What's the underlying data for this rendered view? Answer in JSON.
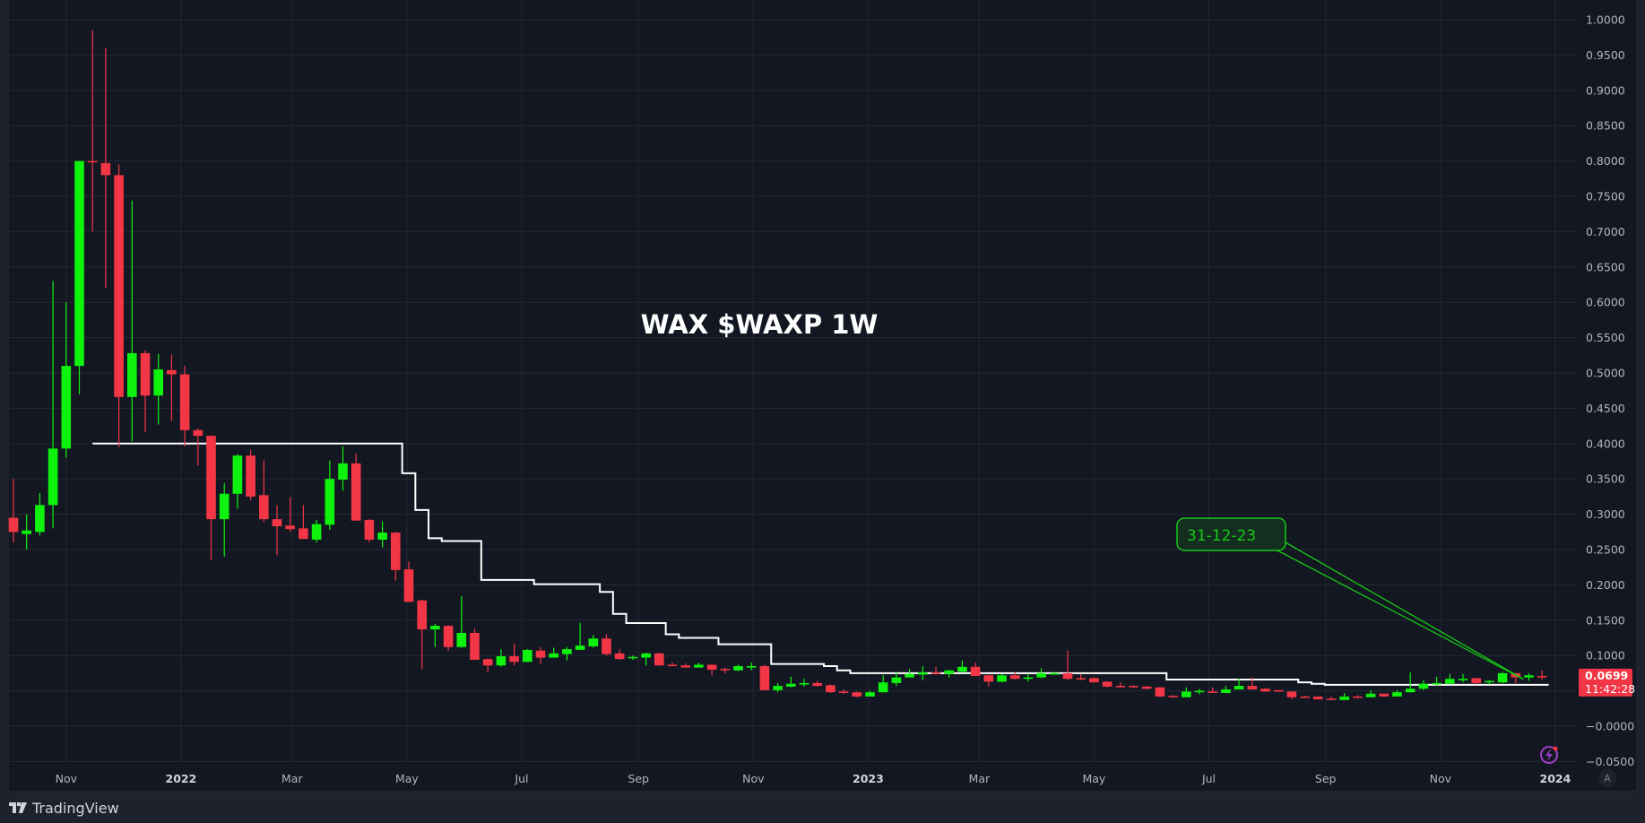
{
  "chart_data": {
    "type": "candlestick",
    "title": "WAX $WAXP 1W",
    "interval": "1W",
    "ylim": [
      -0.06,
      1.03
    ],
    "grid": true,
    "colors": {
      "up": "#0ef20e",
      "down": "#f23645",
      "background": "#131722",
      "grid": "#242833",
      "step_line": "#ffffff",
      "annotation": "#17c917",
      "axis_text": "#b2b5be"
    },
    "price_ticks": [
      {
        "value": 1.0,
        "label": "1.0000"
      },
      {
        "value": 0.95,
        "label": "0.9500"
      },
      {
        "value": 0.9,
        "label": "0.9000"
      },
      {
        "value": 0.85,
        "label": "0.8500"
      },
      {
        "value": 0.8,
        "label": "0.8000"
      },
      {
        "value": 0.75,
        "label": "0.7500"
      },
      {
        "value": 0.7,
        "label": "0.7000"
      },
      {
        "value": 0.65,
        "label": "0.6500"
      },
      {
        "value": 0.6,
        "label": "0.6000"
      },
      {
        "value": 0.55,
        "label": "0.5500"
      },
      {
        "value": 0.5,
        "label": "0.5000"
      },
      {
        "value": 0.45,
        "label": "0.4500"
      },
      {
        "value": 0.4,
        "label": "0.4000"
      },
      {
        "value": 0.35,
        "label": "0.3500"
      },
      {
        "value": 0.3,
        "label": "0.3000"
      },
      {
        "value": 0.25,
        "label": "0.2500"
      },
      {
        "value": 0.2,
        "label": "0.2000"
      },
      {
        "value": 0.15,
        "label": "0.1500"
      },
      {
        "value": 0.1,
        "label": "0.1000"
      },
      {
        "value": 0.05,
        "label": ""
      },
      {
        "value": 0.0,
        "label": "−0.0000"
      },
      {
        "value": -0.05,
        "label": "−0.0500"
      }
    ],
    "time_ticks": [
      {
        "date": "2021-11-01",
        "label": "Nov",
        "year": false
      },
      {
        "date": "2022-01-01",
        "label": "2022",
        "year": true
      },
      {
        "date": "2022-03-01",
        "label": "Mar",
        "year": false
      },
      {
        "date": "2022-05-01",
        "label": "May",
        "year": false
      },
      {
        "date": "2022-07-01",
        "label": "Jul",
        "year": false
      },
      {
        "date": "2022-09-01",
        "label": "Sep",
        "year": false
      },
      {
        "date": "2022-11-01",
        "label": "Nov",
        "year": false
      },
      {
        "date": "2023-01-01",
        "label": "2023",
        "year": true
      },
      {
        "date": "2023-03-01",
        "label": "Mar",
        "year": false
      },
      {
        "date": "2023-05-01",
        "label": "May",
        "year": false
      },
      {
        "date": "2023-07-01",
        "label": "Jul",
        "year": false
      },
      {
        "date": "2023-09-01",
        "label": "Sep",
        "year": false
      },
      {
        "date": "2023-11-01",
        "label": "Nov",
        "year": false
      },
      {
        "date": "2024-01-01",
        "label": "2024",
        "year": true
      }
    ],
    "candle_fields": [
      "date",
      "open",
      "high",
      "low",
      "close"
    ],
    "candles": [
      [
        "2021-10-04",
        0.295,
        0.35,
        0.26,
        0.275
      ],
      [
        "2021-10-11",
        0.272,
        0.3,
        0.25,
        0.277
      ],
      [
        "2021-10-18",
        0.275,
        0.33,
        0.27,
        0.313
      ],
      [
        "2021-10-25",
        0.313,
        0.63,
        0.28,
        0.393
      ],
      [
        "2021-11-01",
        0.393,
        0.6,
        0.38,
        0.51
      ],
      [
        "2021-11-08",
        0.51,
        0.8,
        0.47,
        0.8
      ],
      [
        "2021-11-15",
        0.8,
        0.985,
        0.7,
        0.799
      ],
      [
        "2021-11-22",
        0.797,
        0.96,
        0.62,
        0.78
      ],
      [
        "2021-11-29",
        0.78,
        0.795,
        0.395,
        0.466
      ],
      [
        "2021-12-06",
        0.466,
        0.744,
        0.403,
        0.528
      ],
      [
        "2021-12-13",
        0.528,
        0.532,
        0.416,
        0.468
      ],
      [
        "2021-12-20",
        0.468,
        0.527,
        0.427,
        0.505
      ],
      [
        "2021-12-27",
        0.504,
        0.526,
        0.432,
        0.498
      ],
      [
        "2022-01-03",
        0.498,
        0.51,
        0.396,
        0.419
      ],
      [
        "2022-01-10",
        0.419,
        0.422,
        0.369,
        0.411
      ],
      [
        "2022-01-17",
        0.411,
        0.412,
        0.235,
        0.293
      ],
      [
        "2022-01-24",
        0.293,
        0.344,
        0.24,
        0.329
      ],
      [
        "2022-01-31",
        0.329,
        0.385,
        0.308,
        0.383
      ],
      [
        "2022-02-07",
        0.383,
        0.391,
        0.32,
        0.325
      ],
      [
        "2022-02-14",
        0.327,
        0.376,
        0.289,
        0.293
      ],
      [
        "2022-02-21",
        0.293,
        0.313,
        0.242,
        0.283
      ],
      [
        "2022-02-28",
        0.284,
        0.324,
        0.275,
        0.279
      ],
      [
        "2022-03-07",
        0.28,
        0.313,
        0.265,
        0.265
      ],
      [
        "2022-03-14",
        0.264,
        0.292,
        0.26,
        0.286
      ],
      [
        "2022-03-21",
        0.285,
        0.376,
        0.278,
        0.35
      ],
      [
        "2022-03-28",
        0.349,
        0.396,
        0.333,
        0.372
      ],
      [
        "2022-04-04",
        0.372,
        0.386,
        0.291,
        0.291
      ],
      [
        "2022-04-11",
        0.292,
        0.293,
        0.26,
        0.264
      ],
      [
        "2022-04-18",
        0.264,
        0.29,
        0.253,
        0.274
      ],
      [
        "2022-04-25",
        0.274,
        0.275,
        0.206,
        0.221
      ],
      [
        "2022-05-02",
        0.222,
        0.233,
        0.176,
        0.176
      ],
      [
        "2022-05-09",
        0.178,
        0.179,
        0.081,
        0.137
      ],
      [
        "2022-05-16",
        0.137,
        0.145,
        0.112,
        0.142
      ],
      [
        "2022-05-23",
        0.142,
        0.143,
        0.107,
        0.112
      ],
      [
        "2022-05-30",
        0.112,
        0.184,
        0.111,
        0.132
      ],
      [
        "2022-06-06",
        0.132,
        0.138,
        0.094,
        0.094
      ],
      [
        "2022-06-13",
        0.095,
        0.096,
        0.076,
        0.086
      ],
      [
        "2022-06-20",
        0.086,
        0.109,
        0.084,
        0.099
      ],
      [
        "2022-06-27",
        0.099,
        0.117,
        0.086,
        0.091
      ],
      [
        "2022-07-04",
        0.091,
        0.109,
        0.091,
        0.108
      ],
      [
        "2022-07-11",
        0.107,
        0.112,
        0.088,
        0.097
      ],
      [
        "2022-07-18",
        0.097,
        0.111,
        0.097,
        0.103
      ],
      [
        "2022-07-25",
        0.102,
        0.112,
        0.093,
        0.109
      ],
      [
        "2022-08-01",
        0.108,
        0.146,
        0.108,
        0.114
      ],
      [
        "2022-08-08",
        0.113,
        0.129,
        0.111,
        0.124
      ],
      [
        "2022-08-15",
        0.124,
        0.13,
        0.1,
        0.102
      ],
      [
        "2022-08-22",
        0.103,
        0.109,
        0.094,
        0.095
      ],
      [
        "2022-08-29",
        0.097,
        0.1,
        0.094,
        0.098
      ],
      [
        "2022-09-05",
        0.097,
        0.104,
        0.086,
        0.103
      ],
      [
        "2022-09-12",
        0.103,
        0.104,
        0.086,
        0.086
      ],
      [
        "2022-09-19",
        0.087,
        0.09,
        0.085,
        0.086
      ],
      [
        "2022-09-26",
        0.086,
        0.089,
        0.083,
        0.083
      ],
      [
        "2022-10-03",
        0.083,
        0.09,
        0.083,
        0.087
      ],
      [
        "2022-10-10",
        0.087,
        0.087,
        0.072,
        0.08
      ],
      [
        "2022-10-17",
        0.081,
        0.083,
        0.075,
        0.079
      ],
      [
        "2022-10-24",
        0.079,
        0.087,
        0.078,
        0.085
      ],
      [
        "2022-10-31",
        0.084,
        0.09,
        0.079,
        0.085
      ],
      [
        "2022-11-07",
        0.085,
        0.087,
        0.051,
        0.051
      ],
      [
        "2022-11-14",
        0.051,
        0.061,
        0.048,
        0.057
      ],
      [
        "2022-11-21",
        0.056,
        0.07,
        0.055,
        0.06
      ],
      [
        "2022-11-28",
        0.06,
        0.067,
        0.056,
        0.061
      ],
      [
        "2022-12-05",
        0.061,
        0.064,
        0.056,
        0.057
      ],
      [
        "2022-12-12",
        0.058,
        0.059,
        0.047,
        0.048
      ],
      [
        "2022-12-19",
        0.049,
        0.052,
        0.046,
        0.048
      ],
      [
        "2022-12-26",
        0.048,
        0.049,
        0.041,
        0.042
      ],
      [
        "2023-01-02",
        0.042,
        0.05,
        0.042,
        0.048
      ],
      [
        "2023-01-09",
        0.048,
        0.072,
        0.048,
        0.062
      ],
      [
        "2023-01-16",
        0.061,
        0.077,
        0.057,
        0.069
      ],
      [
        "2023-01-23",
        0.069,
        0.081,
        0.069,
        0.074
      ],
      [
        "2023-01-30",
        0.073,
        0.085,
        0.065,
        0.076
      ],
      [
        "2023-02-06",
        0.076,
        0.084,
        0.073,
        0.075
      ],
      [
        "2023-02-13",
        0.074,
        0.079,
        0.069,
        0.079
      ],
      [
        "2023-02-20",
        0.077,
        0.093,
        0.076,
        0.084
      ],
      [
        "2023-02-27",
        0.084,
        0.09,
        0.071,
        0.071
      ],
      [
        "2023-03-06",
        0.072,
        0.073,
        0.056,
        0.063
      ],
      [
        "2023-03-13",
        0.063,
        0.074,
        0.062,
        0.072
      ],
      [
        "2023-03-20",
        0.072,
        0.076,
        0.066,
        0.067
      ],
      [
        "2023-03-27",
        0.067,
        0.074,
        0.063,
        0.069
      ],
      [
        "2023-04-03",
        0.069,
        0.082,
        0.068,
        0.075
      ],
      [
        "2023-04-10",
        0.074,
        0.077,
        0.073,
        0.075
      ],
      [
        "2023-04-17",
        0.075,
        0.107,
        0.066,
        0.067
      ],
      [
        "2023-04-24",
        0.068,
        0.074,
        0.065,
        0.067
      ],
      [
        "2023-05-01",
        0.068,
        0.069,
        0.062,
        0.062
      ],
      [
        "2023-05-08",
        0.063,
        0.063,
        0.055,
        0.056
      ],
      [
        "2023-05-15",
        0.057,
        0.062,
        0.056,
        0.056
      ],
      [
        "2023-05-22",
        0.057,
        0.058,
        0.055,
        0.056
      ],
      [
        "2023-05-29",
        0.056,
        0.057,
        0.052,
        0.053
      ],
      [
        "2023-06-05",
        0.055,
        0.055,
        0.041,
        0.042
      ],
      [
        "2023-06-12",
        0.043,
        0.044,
        0.041,
        0.042
      ],
      [
        "2023-06-19",
        0.041,
        0.055,
        0.041,
        0.049
      ],
      [
        "2023-06-26",
        0.049,
        0.053,
        0.045,
        0.05
      ],
      [
        "2023-07-03",
        0.049,
        0.055,
        0.047,
        0.047
      ],
      [
        "2023-07-10",
        0.047,
        0.057,
        0.047,
        0.052
      ],
      [
        "2023-07-17",
        0.052,
        0.067,
        0.052,
        0.057
      ],
      [
        "2023-07-24",
        0.057,
        0.069,
        0.052,
        0.052
      ],
      [
        "2023-07-31",
        0.053,
        0.054,
        0.049,
        0.049
      ],
      [
        "2023-08-07",
        0.051,
        0.051,
        0.048,
        0.05
      ],
      [
        "2023-08-14",
        0.049,
        0.049,
        0.038,
        0.041
      ],
      [
        "2023-08-21",
        0.042,
        0.043,
        0.041,
        0.041
      ],
      [
        "2023-08-28",
        0.042,
        0.042,
        0.038,
        0.038
      ],
      [
        "2023-09-04",
        0.039,
        0.042,
        0.038,
        0.038
      ],
      [
        "2023-09-11",
        0.037,
        0.047,
        0.037,
        0.042
      ],
      [
        "2023-09-18",
        0.042,
        0.044,
        0.041,
        0.041
      ],
      [
        "2023-09-25",
        0.041,
        0.051,
        0.041,
        0.046
      ],
      [
        "2023-10-02",
        0.046,
        0.046,
        0.042,
        0.042
      ],
      [
        "2023-10-09",
        0.042,
        0.051,
        0.042,
        0.048
      ],
      [
        "2023-10-16",
        0.048,
        0.076,
        0.048,
        0.053
      ],
      [
        "2023-10-23",
        0.053,
        0.065,
        0.051,
        0.06
      ],
      [
        "2023-10-30",
        0.059,
        0.07,
        0.058,
        0.061
      ],
      [
        "2023-11-06",
        0.06,
        0.074,
        0.06,
        0.067
      ],
      [
        "2023-11-13",
        0.066,
        0.074,
        0.062,
        0.067
      ],
      [
        "2023-11-20",
        0.068,
        0.068,
        0.059,
        0.061
      ],
      [
        "2023-11-27",
        0.063,
        0.065,
        0.059,
        0.064
      ],
      [
        "2023-12-04",
        0.062,
        0.077,
        0.061,
        0.075
      ],
      [
        "2023-12-11",
        0.075,
        0.075,
        0.061,
        0.069
      ],
      [
        "2023-12-18",
        0.069,
        0.075,
        0.064,
        0.072
      ],
      [
        "2023-12-25",
        0.071,
        0.079,
        0.066,
        0.0699
      ]
    ],
    "step_line": [
      {
        "from": "2021-11-15",
        "value": 0.4
      },
      {
        "from": "2022-05-02",
        "value": 0.358
      },
      {
        "from": "2022-05-09",
        "value": 0.306
      },
      {
        "from": "2022-05-16",
        "value": 0.266
      },
      {
        "from": "2022-05-23",
        "value": 0.262
      },
      {
        "from": "2022-06-13",
        "value": 0.207
      },
      {
        "from": "2022-07-11",
        "value": 0.201
      },
      {
        "from": "2022-08-15",
        "value": 0.19
      },
      {
        "from": "2022-08-22",
        "value": 0.159
      },
      {
        "from": "2022-08-29",
        "value": 0.146
      },
      {
        "from": "2022-09-19",
        "value": 0.13
      },
      {
        "from": "2022-09-26",
        "value": 0.125
      },
      {
        "from": "2022-10-17",
        "value": 0.116
      },
      {
        "from": "2022-11-14",
        "value": 0.088
      },
      {
        "from": "2022-12-12",
        "value": 0.085
      },
      {
        "from": "2022-12-19",
        "value": 0.079
      },
      {
        "from": "2022-12-26",
        "value": 0.075
      },
      {
        "from": "2023-06-12",
        "value": 0.066
      },
      {
        "from": "2023-08-21",
        "value": 0.062
      },
      {
        "from": "2023-08-28",
        "value": 0.06
      },
      {
        "from": "2023-09-04",
        "value": 0.0585
      },
      {
        "from": "2023-12-25",
        "value": 0.0585
      }
    ],
    "annotation": {
      "text": "31-12-23",
      "target_date": "2023-12-18",
      "target_price": 0.074
    },
    "last_price": {
      "value": 0.0699,
      "label": "0.0699",
      "countdown": "11:42:28"
    }
  },
  "footer": {
    "brand": "TradingView"
  },
  "axis_button": {
    "label": "A"
  }
}
